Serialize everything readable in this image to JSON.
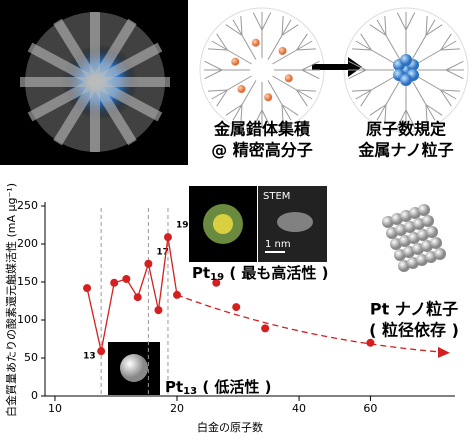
{
  "panels": {
    "left_caption": [
      "金属錯体集積",
      "@ 精密高分子"
    ],
    "right_caption": [
      "原子数規定",
      "金属ナノ粒子"
    ],
    "stem_label": "STEM",
    "scale_label": "1 nm"
  },
  "chart_data": {
    "type": "line",
    "x_label": "白金の原子数",
    "y_label": "白金質量あたりの酸素還元触媒活性 (mA μg⁻¹)",
    "x": [
      12,
      13,
      14,
      15,
      16,
      17,
      18,
      19,
      20,
      25,
      28,
      33,
      60
    ],
    "series": [
      {
        "color": "#d42020",
        "values": [
          142,
          59,
          149,
          154,
          130,
          174,
          113,
          209,
          133,
          149,
          117,
          89,
          70
        ]
      }
    ],
    "xlim": [
      9.45,
      97
    ],
    "xticks": [
      10,
      20,
      40,
      60
    ],
    "xscale": "log",
    "ylim": [
      0,
      250
    ],
    "yticks": [
      0,
      50,
      100,
      150,
      200,
      250
    ],
    "labeled_points": [
      1,
      5,
      7
    ],
    "annotations": [
      {
        "text": "Pt",
        "sub": "13",
        "rest": " ( 低活性 )"
      },
      {
        "text": "Pt",
        "sub": "19",
        "rest": " ( 最も高活性 )"
      },
      {
        "text": "Pt ナノ粒子",
        "rest": "( 粒径依存 )"
      }
    ]
  }
}
